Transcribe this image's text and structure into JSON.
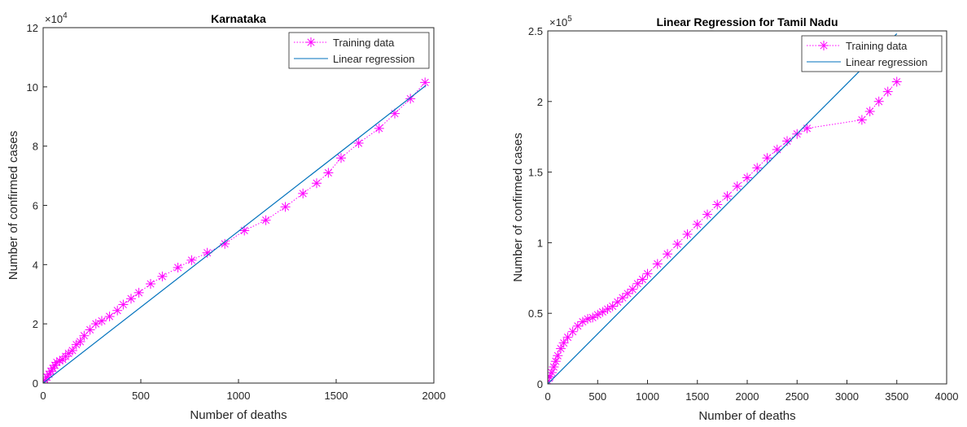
{
  "chart_data": [
    {
      "type": "line",
      "title": "Karnataka",
      "xlabel": "Number of deaths",
      "ylabel": "Number of confirmed cases",
      "y_multiplier": {
        "base": "×10",
        "exponent": "4"
      },
      "xlim": [
        0,
        2000
      ],
      "xticks": [
        0,
        500,
        1000,
        1500,
        2000
      ],
      "ylim": [
        0,
        12
      ],
      "yticks": [
        0,
        2,
        4,
        6,
        8,
        10,
        12
      ],
      "legend": "top-right",
      "series": [
        {
          "name": "Training data",
          "color": "#ff00ff",
          "marker": "*",
          "line_style": "dotted",
          "x": [
            0,
            10,
            20,
            30,
            40,
            50,
            60,
            70,
            85,
            100,
            115,
            130,
            150,
            170,
            190,
            210,
            240,
            270,
            300,
            340,
            380,
            410,
            450,
            490,
            550,
            610,
            690,
            760,
            840,
            930,
            1030,
            1140,
            1240,
            1330,
            1400,
            1460,
            1525,
            1615,
            1720,
            1800,
            1880,
            1955
          ],
          "values": [
            0.05,
            0.1,
            0.2,
            0.3,
            0.4,
            0.5,
            0.6,
            0.7,
            0.75,
            0.8,
            0.9,
            1.0,
            1.1,
            1.3,
            1.4,
            1.6,
            1.8,
            2.0,
            2.1,
            2.25,
            2.45,
            2.65,
            2.85,
            3.05,
            3.35,
            3.6,
            3.9,
            4.15,
            4.4,
            4.7,
            5.15,
            5.5,
            5.95,
            6.4,
            6.75,
            7.1,
            7.6,
            8.1,
            8.6,
            9.1,
            9.6,
            10.15
          ]
        },
        {
          "name": "Linear regression",
          "color": "#0072bd",
          "marker": "none",
          "line_style": "solid",
          "x": [
            0,
            1960
          ],
          "values": [
            0,
            10.05
          ]
        }
      ]
    },
    {
      "type": "line",
      "title": "Linear Regression for Tamil Nadu",
      "xlabel": "Number of deaths",
      "ylabel": "Number of confirmed cases",
      "y_multiplier": {
        "base": "×10",
        "exponent": "5"
      },
      "xlim": [
        0,
        4000
      ],
      "xticks": [
        0,
        500,
        1000,
        1500,
        2000,
        2500,
        3000,
        3500,
        4000
      ],
      "ylim": [
        0,
        2.5
      ],
      "yticks": [
        0,
        0.5,
        1,
        1.5,
        2,
        2.5
      ],
      "legend": "top-right",
      "series": [
        {
          "name": "Training data",
          "color": "#ff00ff",
          "marker": "*",
          "line_style": "dotted",
          "x": [
            0,
            20,
            40,
            60,
            80,
            100,
            130,
            160,
            200,
            250,
            300,
            350,
            400,
            450,
            500,
            550,
            600,
            650,
            700,
            750,
            800,
            850,
            900,
            950,
            1000,
            1100,
            1200,
            1300,
            1400,
            1500,
            1600,
            1700,
            1800,
            1900,
            2000,
            2100,
            2200,
            2300,
            2400,
            2500,
            2600,
            3150,
            3230,
            3320,
            3410,
            3500
          ],
          "values": [
            0.02,
            0.05,
            0.08,
            0.12,
            0.16,
            0.2,
            0.25,
            0.29,
            0.33,
            0.37,
            0.41,
            0.44,
            0.46,
            0.47,
            0.49,
            0.51,
            0.53,
            0.55,
            0.58,
            0.61,
            0.64,
            0.67,
            0.71,
            0.74,
            0.78,
            0.85,
            0.92,
            0.99,
            1.06,
            1.13,
            1.2,
            1.27,
            1.33,
            1.4,
            1.46,
            1.53,
            1.6,
            1.66,
            1.72,
            1.77,
            1.81,
            1.87,
            1.93,
            2.0,
            2.07,
            2.14
          ]
        },
        {
          "name": "Linear regression",
          "color": "#0072bd",
          "marker": "none",
          "line_style": "solid",
          "x": [
            0,
            3500
          ],
          "values": [
            0,
            2.48
          ]
        }
      ]
    }
  ]
}
